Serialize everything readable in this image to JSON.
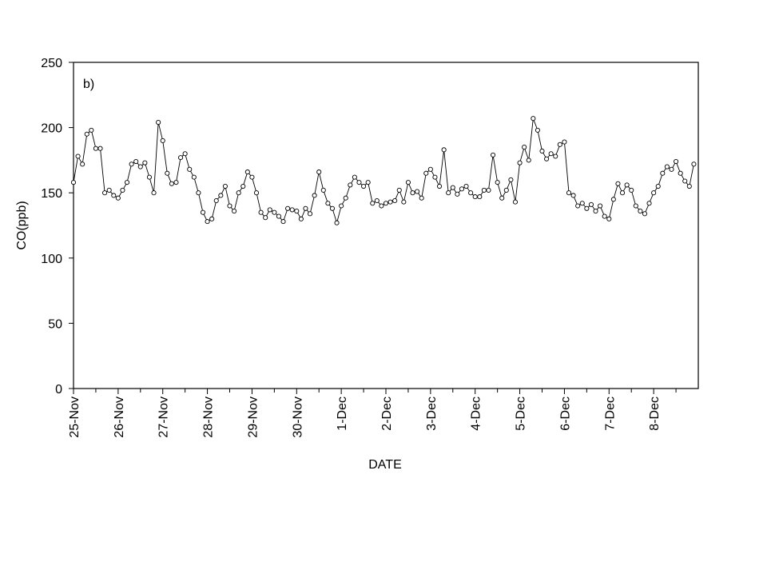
{
  "chart_data": {
    "type": "line",
    "annotation": "b)",
    "xlabel": "DATE",
    "ylabel": "CO(ppb)",
    "xlim": [
      0,
      14
    ],
    "ylim": [
      0,
      250
    ],
    "yticks": [
      0,
      50,
      100,
      150,
      200,
      250
    ],
    "xticks": [
      {
        "value": 0,
        "label": "25-Nov"
      },
      {
        "value": 1,
        "label": "26-Nov"
      },
      {
        "value": 2,
        "label": "27-Nov"
      },
      {
        "value": 3,
        "label": "28-Nov"
      },
      {
        "value": 4,
        "label": "29-Nov"
      },
      {
        "value": 5,
        "label": "30-Nov"
      },
      {
        "value": 6,
        "label": "1-Dec"
      },
      {
        "value": 7,
        "label": "2-Dec"
      },
      {
        "value": 8,
        "label": "3-Dec"
      },
      {
        "value": 9,
        "label": "4-Dec"
      },
      {
        "value": 10,
        "label": "5-Dec"
      },
      {
        "value": 11,
        "label": "6-Dec"
      },
      {
        "value": 12,
        "label": "7-Dec"
      },
      {
        "value": 13,
        "label": "8-Dec"
      }
    ],
    "x": [
      0,
      0.1,
      0.2,
      0.3,
      0.4,
      0.5,
      0.6,
      0.7,
      0.8,
      0.9,
      1,
      1.1,
      1.2,
      1.3,
      1.4,
      1.5,
      1.6,
      1.7,
      1.8,
      1.9,
      2,
      2.1,
      2.2,
      2.3,
      2.4,
      2.5,
      2.6,
      2.7,
      2.8,
      2.9,
      3,
      3.1,
      3.2,
      3.3,
      3.4,
      3.5,
      3.6,
      3.7,
      3.8,
      3.9,
      4,
      4.1,
      4.2,
      4.3,
      4.4,
      4.5,
      4.6,
      4.7,
      4.8,
      4.9,
      5,
      5.1,
      5.2,
      5.3,
      5.4,
      5.5,
      5.6,
      5.7,
      5.8,
      5.9,
      6,
      6.1,
      6.2,
      6.3,
      6.4,
      6.5,
      6.6,
      6.7,
      6.8,
      6.9,
      7,
      7.1,
      7.2,
      7.3,
      7.4,
      7.5,
      7.6,
      7.7,
      7.8,
      7.9,
      8,
      8.1,
      8.2,
      8.3,
      8.4,
      8.5,
      8.6,
      8.7,
      8.8,
      8.9,
      9,
      9.1,
      9.2,
      9.3,
      9.4,
      9.5,
      9.6,
      9.7,
      9.8,
      9.9,
      10,
      10.1,
      10.2,
      10.3,
      10.4,
      10.5,
      10.6,
      10.7,
      10.8,
      10.9,
      11,
      11.1,
      11.2,
      11.3,
      11.4,
      11.5,
      11.6,
      11.7,
      11.8,
      11.9,
      12,
      12.1,
      12.2,
      12.3,
      12.4,
      12.5,
      12.6,
      12.7,
      12.8,
      12.9,
      13,
      13.1,
      13.2,
      13.3,
      13.4,
      13.5,
      13.6,
      13.7,
      13.8,
      13.9
    ],
    "series": [
      {
        "color": "#000000",
        "values": [
          158,
          178,
          172,
          195,
          198,
          184,
          184,
          150,
          152,
          148,
          146,
          152,
          158,
          172,
          174,
          170,
          173,
          162,
          150,
          204,
          190,
          165,
          157,
          158,
          177,
          180,
          168,
          162,
          150,
          135,
          128,
          130,
          144,
          148,
          155,
          140,
          136,
          150,
          155,
          166,
          162,
          150,
          135,
          131,
          137,
          135,
          132,
          128,
          138,
          137,
          136,
          130,
          138,
          134,
          148,
          166,
          152,
          142,
          138,
          127,
          140,
          146,
          156,
          162,
          158,
          155,
          158,
          142,
          144,
          140,
          142,
          143,
          144,
          152,
          143,
          158,
          150,
          151,
          146,
          165,
          168,
          162,
          155,
          183,
          150,
          154,
          149,
          153,
          155,
          150,
          147,
          147,
          152,
          152,
          179,
          158,
          146,
          152,
          160,
          143,
          173,
          185,
          175,
          207,
          198,
          182,
          176,
          180,
          178,
          187,
          189,
          150,
          148,
          140,
          142,
          138,
          141,
          136,
          140,
          132,
          130,
          145,
          157,
          150,
          156,
          152,
          140,
          136,
          134,
          142,
          150,
          155,
          165,
          170,
          168,
          174,
          165,
          159,
          155,
          172
        ]
      }
    ]
  }
}
